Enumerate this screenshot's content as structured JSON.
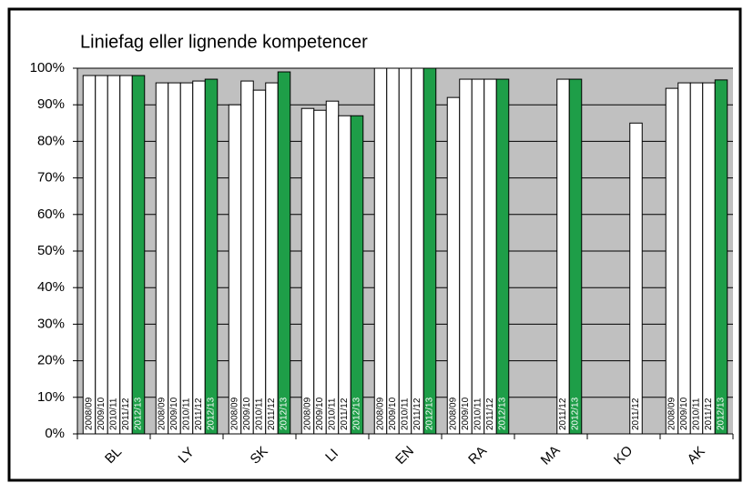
{
  "chart_data": {
    "type": "bar",
    "title": "Liniefag eller lignende kompetencer",
    "categories": [
      "BL",
      "LY",
      "SK",
      "LI",
      "EN",
      "RA",
      "MA",
      "KO",
      "AK"
    ],
    "series": [
      {
        "name": "2008/09",
        "color": "#ffffff",
        "values": [
          98,
          96,
          90,
          89,
          100,
          92,
          null,
          null,
          94.5
        ]
      },
      {
        "name": "2009/10",
        "color": "#ffffff",
        "values": [
          98,
          96,
          96.5,
          88.5,
          100,
          97,
          null,
          null,
          96
        ]
      },
      {
        "name": "2010/11",
        "color": "#ffffff",
        "values": [
          98,
          96,
          94,
          91,
          100,
          97,
          null,
          null,
          96
        ]
      },
      {
        "name": "2011/12",
        "color": "#ffffff",
        "values": [
          98,
          96.5,
          96,
          87,
          100,
          97,
          97,
          85,
          96
        ]
      },
      {
        "name": "2012/13",
        "color": "#1e9e48",
        "values": [
          98,
          97,
          99,
          87,
          100,
          97,
          97,
          null,
          96.8
        ]
      }
    ],
    "ylim": [
      0,
      100
    ],
    "yticks": [
      {
        "value": 0,
        "label": "0%"
      },
      {
        "value": 10,
        "label": "10%"
      },
      {
        "value": 20,
        "label": "20%"
      },
      {
        "value": 30,
        "label": "30%"
      },
      {
        "value": 40,
        "label": "40%"
      },
      {
        "value": 50,
        "label": "50%"
      },
      {
        "value": 60,
        "label": "60%"
      },
      {
        "value": 70,
        "label": "70%"
      },
      {
        "value": 80,
        "label": "80%"
      },
      {
        "value": 90,
        "label": "90%"
      },
      {
        "value": 100,
        "label": "100%"
      }
    ],
    "grid": true,
    "background": "#c0c0c0"
  }
}
